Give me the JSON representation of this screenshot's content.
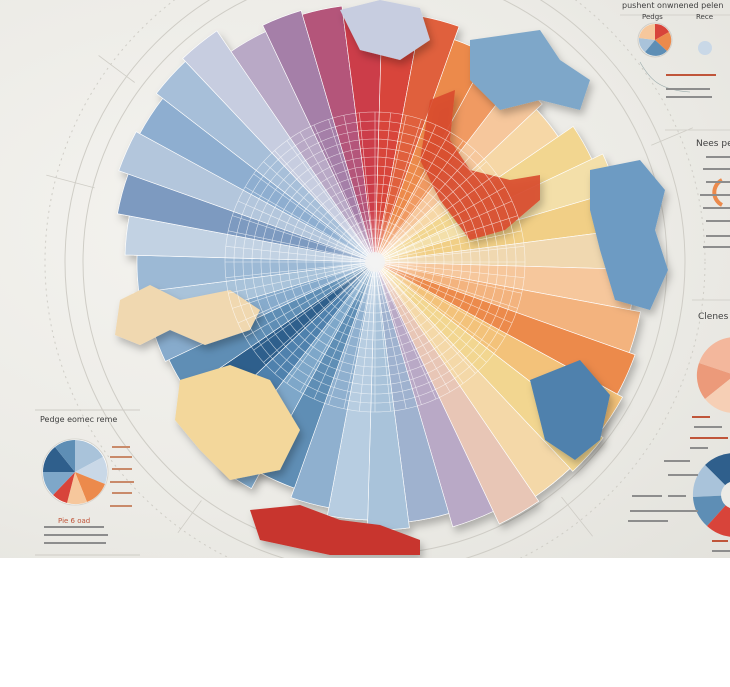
{
  "header_texts": [
    "pushent onwnened pelen",
    "Pedgs",
    "Rece"
  ],
  "side_headings": [
    "Nees per",
    "Clenes"
  ],
  "left_panel_title": "Pedge eomec reme",
  "left_panel_subtitle": "Pie 6 oad",
  "colors": {
    "red": "#d8443a",
    "orange": "#ec8a4c",
    "peach": "#f6c79c",
    "sand": "#f2d690",
    "lavender": "#b9a9c6",
    "light_blue": "#a9c3da",
    "steel_blue": "#5e8eb5",
    "navy": "#2f5f8c",
    "paper": "#ecebe6"
  },
  "icons": [
    "radial-map-graphic",
    "pie-chart-icon",
    "donut-chart-icon"
  ]
}
